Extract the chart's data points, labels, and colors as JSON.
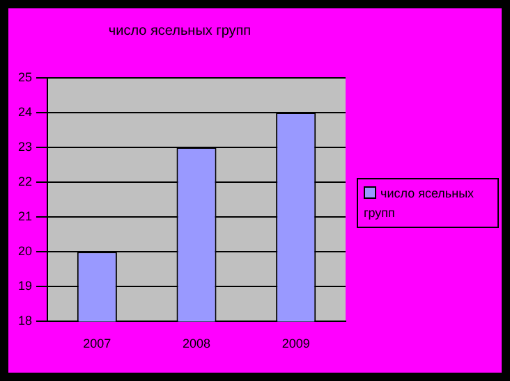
{
  "chart_data": {
    "type": "bar",
    "title": "число ясельных групп",
    "categories": [
      "2007",
      "2008",
      "2009"
    ],
    "series": [
      {
        "name": "число ясельных групп",
        "color": "#9999ff",
        "values": [
          20,
          23,
          24
        ]
      }
    ],
    "ylim": [
      18,
      25
    ],
    "yticks": [
      18,
      19,
      20,
      21,
      22,
      23,
      24,
      25
    ],
    "grid": "y",
    "legend": "right"
  }
}
